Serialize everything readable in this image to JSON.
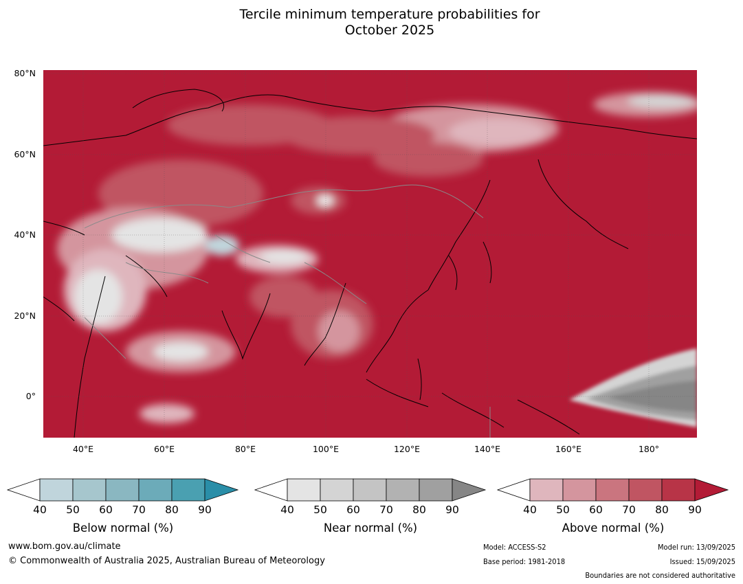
{
  "title": {
    "line1": "Tercile minimum temperature probabilities for",
    "line2": "October 2025"
  },
  "map": {
    "lat_labels": [
      "80°N",
      "60°N",
      "40°N",
      "20°N",
      "0°"
    ],
    "lon_labels": [
      "40°E",
      "60°E",
      "80°E",
      "100°E",
      "120°E",
      "140°E",
      "160°E",
      "180°"
    ],
    "lat_range": [
      -10,
      81
    ],
    "lon_range": [
      30,
      192
    ],
    "background_color": "#b31b36"
  },
  "colorbars": [
    {
      "id": "below",
      "title": "Below normal (%)",
      "ticks": [
        "40",
        "50",
        "60",
        "70",
        "80",
        "90"
      ],
      "colors": [
        "#c0d5dc",
        "#a6c6cd",
        "#8ab7c1",
        "#6cabb9",
        "#4aa0b1",
        "#2a8ea8"
      ]
    },
    {
      "id": "near",
      "title": "Near normal (%)",
      "ticks": [
        "40",
        "50",
        "60",
        "70",
        "80",
        "90"
      ],
      "colors": [
        "#e4e4e4",
        "#d4d4d4",
        "#c4c4c4",
        "#b2b2b2",
        "#a0a0a0",
        "#868686"
      ]
    },
    {
      "id": "above",
      "title": "Above normal (%)",
      "ticks": [
        "40",
        "50",
        "60",
        "70",
        "80",
        "90"
      ],
      "colors": [
        "#dfb6bd",
        "#d4959e",
        "#ca757f",
        "#c05562",
        "#b83447",
        "#b31b36"
      ]
    }
  ],
  "footer": {
    "website": "www.bom.gov.au/climate",
    "copyright": "© Commonwealth of Australia 2025, Australian Bureau of Meteorology",
    "model": "Model: ACCESS-S2",
    "base_period": "Base period: 1981-2018",
    "model_run": "Model run: 13/09/2025",
    "issued": "Issued: 15/09/2025",
    "boundaries": "Boundaries are not considered authoritative"
  }
}
